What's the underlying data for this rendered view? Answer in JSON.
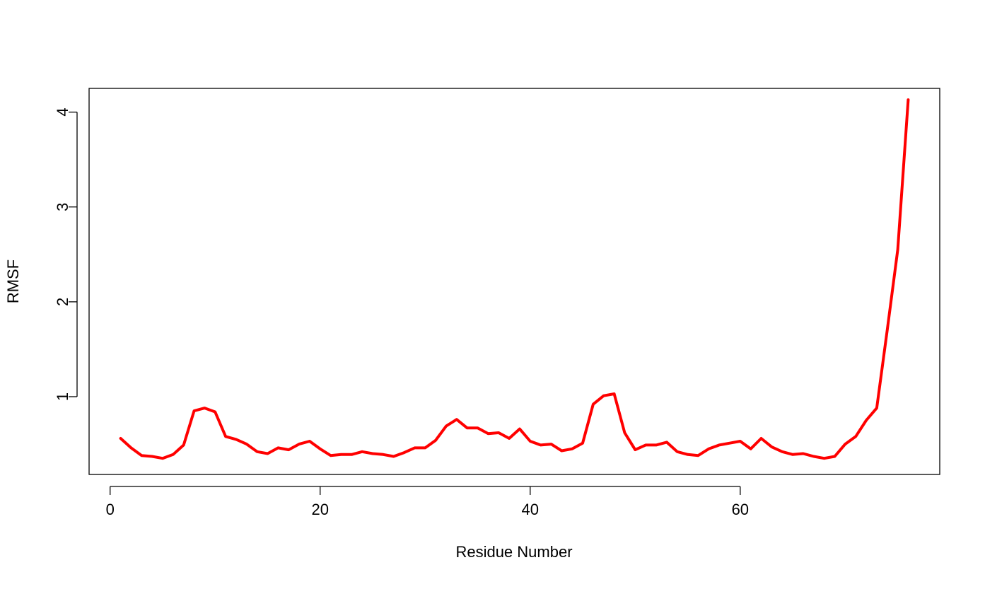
{
  "chart_data": {
    "type": "line",
    "title": "",
    "xlabel": "Residue Number",
    "ylabel": "RMSF",
    "xlim": [
      -2,
      79
    ],
    "ylim": [
      0.18,
      4.25
    ],
    "x_ticks": [
      0,
      20,
      40,
      60
    ],
    "y_ticks": [
      1,
      2,
      3,
      4
    ],
    "grid": false,
    "line_color": "#ff0000",
    "series": [
      {
        "x": [
          1,
          2,
          3,
          4,
          5,
          6,
          7,
          8,
          9,
          10,
          11,
          12,
          13,
          14,
          15,
          16,
          17,
          18,
          19,
          20,
          21,
          22,
          23,
          24,
          25,
          26,
          27,
          28,
          29,
          30,
          31,
          32,
          33,
          34,
          35,
          36,
          37,
          38,
          39,
          40,
          41,
          42,
          43,
          44,
          45,
          46,
          47,
          48,
          49,
          50,
          51,
          52,
          53,
          54,
          55,
          56,
          57,
          58,
          59,
          60,
          61,
          62,
          63,
          64,
          65,
          66,
          67,
          68,
          69,
          70,
          71,
          72,
          73,
          74,
          75,
          76
        ],
        "values": [
          0.56,
          0.46,
          0.38,
          0.37,
          0.35,
          0.39,
          0.49,
          0.85,
          0.88,
          0.84,
          0.58,
          0.55,
          0.5,
          0.42,
          0.4,
          0.46,
          0.44,
          0.5,
          0.53,
          0.45,
          0.38,
          0.39,
          0.39,
          0.42,
          0.4,
          0.39,
          0.37,
          0.41,
          0.46,
          0.46,
          0.54,
          0.69,
          0.76,
          0.67,
          0.67,
          0.61,
          0.62,
          0.56,
          0.66,
          0.53,
          0.49,
          0.5,
          0.43,
          0.45,
          0.51,
          0.92,
          1.01,
          1.03,
          0.62,
          0.44,
          0.49,
          0.49,
          0.52,
          0.42,
          0.39,
          0.38,
          0.45,
          0.49,
          0.51,
          0.53,
          0.45,
          0.56,
          0.47,
          0.42,
          0.39,
          0.4,
          0.37,
          0.35,
          0.37,
          0.5,
          0.58,
          0.75,
          0.88,
          1.7,
          2.55,
          4.13
        ]
      }
    ]
  }
}
